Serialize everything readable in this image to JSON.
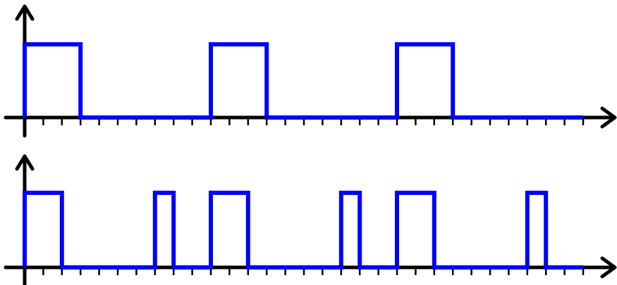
{
  "chart_data": [
    {
      "type": "line",
      "title": "",
      "xlabel": "",
      "ylabel": "",
      "tick_count": 30,
      "tick_spacing_units": 1,
      "x_range": [
        0,
        30
      ],
      "y_levels": [
        0,
        1
      ],
      "series": [
        {
          "color": "#0000ff",
          "pulses": [
            [
              0,
              3
            ],
            [
              10,
              13
            ],
            [
              20,
              23
            ]
          ]
        }
      ]
    },
    {
      "type": "line",
      "title": "",
      "xlabel": "",
      "ylabel": "",
      "tick_count": 30,
      "tick_spacing_units": 1,
      "x_range": [
        0,
        30
      ],
      "y_levels": [
        0,
        1
      ],
      "series": [
        {
          "color": "#0000ff",
          "pulses": [
            [
              0,
              2
            ],
            [
              7,
              8
            ],
            [
              10,
              12
            ],
            [
              17,
              18
            ],
            [
              20,
              22
            ],
            [
              27,
              28
            ]
          ]
        }
      ]
    }
  ],
  "colors": {
    "signal": "#0000ff",
    "axis": "#000000",
    "background": "#ffffff"
  }
}
